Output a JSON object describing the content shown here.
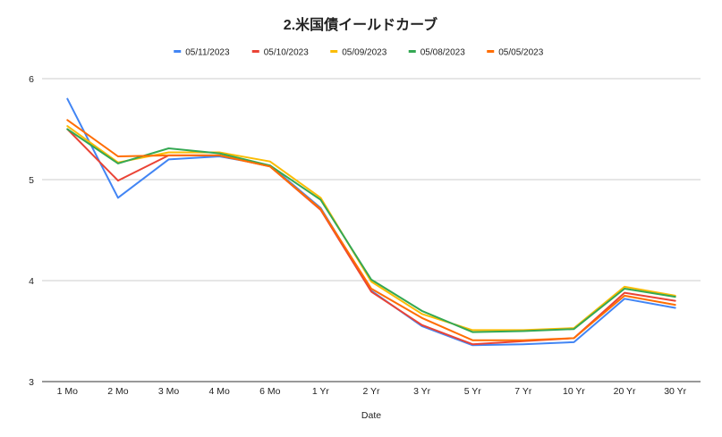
{
  "chart_data": {
    "type": "line",
    "title": "2.米国債イールドカーブ",
    "xlabel": "Date",
    "ylabel": "",
    "categories": [
      "1 Mo",
      "2 Mo",
      "3 Mo",
      "4 Mo",
      "6 Mo",
      "1 Yr",
      "2 Yr",
      "3 Yr",
      "5 Yr",
      "7 Yr",
      "10 Yr",
      "20 Yr",
      "30 Yr"
    ],
    "ylim": [
      3,
      6
    ],
    "yticks": [
      "3",
      "4",
      "5",
      "6"
    ],
    "grid": true,
    "legend_position": "top",
    "series": [
      {
        "name": "05/11/2023",
        "color": "#4285f4",
        "values": [
          5.8,
          4.82,
          5.2,
          5.23,
          5.14,
          4.72,
          3.9,
          3.55,
          3.36,
          3.37,
          3.39,
          3.82,
          3.73
        ]
      },
      {
        "name": "05/10/2023",
        "color": "#ea4335",
        "values": [
          5.5,
          4.99,
          5.24,
          5.24,
          5.13,
          4.7,
          3.89,
          3.56,
          3.37,
          3.4,
          3.43,
          3.88,
          3.8
        ]
      },
      {
        "name": "05/09/2023",
        "color": "#fbbc04",
        "values": [
          5.53,
          5.17,
          5.27,
          5.27,
          5.18,
          4.82,
          3.99,
          3.67,
          3.51,
          3.51,
          3.53,
          3.94,
          3.85
        ]
      },
      {
        "name": "05/08/2023",
        "color": "#34a853",
        "values": [
          5.5,
          5.16,
          5.31,
          5.26,
          5.14,
          4.8,
          4.01,
          3.7,
          3.49,
          3.5,
          3.52,
          3.92,
          3.84
        ]
      },
      {
        "name": "05/05/2023",
        "color": "#ff6d01",
        "values": [
          5.59,
          5.23,
          5.24,
          5.24,
          5.13,
          4.71,
          3.92,
          3.63,
          3.41,
          3.41,
          3.43,
          3.85,
          3.76
        ]
      }
    ]
  }
}
